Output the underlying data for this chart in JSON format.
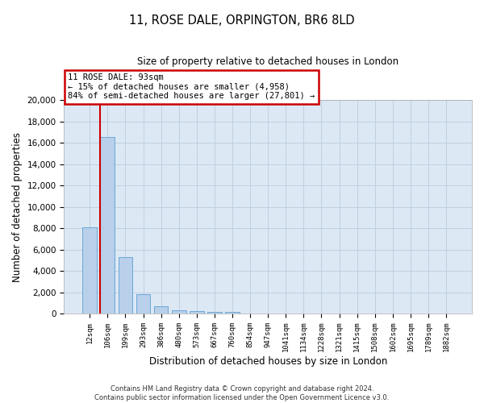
{
  "title_line1": "11, ROSE DALE, ORPINGTON, BR6 8LD",
  "title_line2": "Size of property relative to detached houses in London",
  "xlabel": "Distribution of detached houses by size in London",
  "ylabel": "Number of detached properties",
  "bar_color": "#b8d0ea",
  "bar_edge_color": "#5a9fd4",
  "marker_color": "#cc0000",
  "categories": [
    "12sqm",
    "106sqm",
    "199sqm",
    "293sqm",
    "386sqm",
    "480sqm",
    "573sqm",
    "667sqm",
    "760sqm",
    "854sqm",
    "947sqm",
    "1041sqm",
    "1134sqm",
    "1228sqm",
    "1321sqm",
    "1415sqm",
    "1508sqm",
    "1602sqm",
    "1695sqm",
    "1789sqm",
    "1882sqm"
  ],
  "values": [
    8100,
    16550,
    5300,
    1850,
    680,
    320,
    220,
    185,
    155,
    0,
    0,
    0,
    0,
    0,
    0,
    0,
    0,
    0,
    0,
    0,
    0
  ],
  "ylim": [
    0,
    20000
  ],
  "yticks": [
    0,
    2000,
    4000,
    6000,
    8000,
    10000,
    12000,
    14000,
    16000,
    18000,
    20000
  ],
  "annotation_text": "11 ROSE DALE: 93sqm\n← 15% of detached houses are smaller (4,958)\n84% of semi-detached houses are larger (27,801) →",
  "footer_line1": "Contains HM Land Registry data © Crown copyright and database right 2024.",
  "footer_line2": "Contains public sector information licensed under the Open Government Licence v3.0.",
  "background_color": "#ffffff",
  "plot_bg_color": "#dde8f5",
  "grid_color": "#c0d0e0",
  "annotation_box_color": "#ffffff",
  "annotation_box_edge": "#cc0000",
  "marker_bar_index": 1
}
